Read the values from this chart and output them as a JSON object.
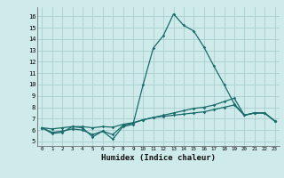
{
  "xlabel": "Humidex (Indice chaleur)",
  "bg_color": "#ceeaea",
  "grid_color": "#aacece",
  "line_color": "#1a6b6b",
  "x_ticks": [
    0,
    1,
    2,
    3,
    4,
    5,
    6,
    7,
    8,
    9,
    10,
    11,
    12,
    13,
    14,
    15,
    16,
    17,
    18,
    19,
    20,
    21,
    22,
    23
  ],
  "y_ticks": [
    5,
    6,
    7,
    8,
    9,
    10,
    11,
    12,
    13,
    14,
    15,
    16
  ],
  "ylim": [
    4.6,
    16.8
  ],
  "xlim": [
    -0.5,
    23.5
  ],
  "series": {
    "line1": [
      6.2,
      5.7,
      5.8,
      6.3,
      6.2,
      5.4,
      5.9,
      5.2,
      6.3,
      6.5,
      10.0,
      13.2,
      14.3,
      16.2,
      15.2,
      14.7,
      13.3,
      11.6,
      10.0,
      8.3,
      7.3,
      7.5,
      7.5,
      6.8
    ],
    "line2": [
      6.2,
      5.8,
      5.9,
      6.1,
      6.0,
      5.6,
      5.9,
      5.6,
      6.4,
      6.6,
      6.9,
      7.1,
      7.2,
      7.3,
      7.4,
      7.5,
      7.6,
      7.8,
      8.0,
      8.2,
      7.3,
      7.5,
      7.5,
      6.8
    ],
    "line3": [
      6.2,
      6.1,
      6.2,
      6.3,
      6.3,
      6.2,
      6.3,
      6.25,
      6.5,
      6.65,
      6.9,
      7.1,
      7.3,
      7.5,
      7.7,
      7.9,
      8.0,
      8.2,
      8.5,
      8.8,
      7.3,
      7.5,
      7.5,
      6.8
    ]
  }
}
